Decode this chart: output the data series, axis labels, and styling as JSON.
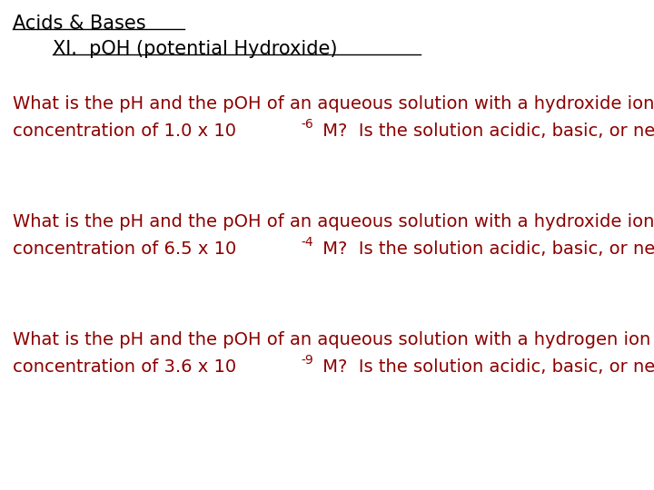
{
  "bg_color": "#ffffff",
  "title1": "Acids & Bases",
  "title2": "XI.  pOH (potential Hydroxide)",
  "title_color": "#000000",
  "question_color": "#8B0000",
  "q1_line1": "What is the pH and the pOH of an aqueous solution with a hydroxide ion",
  "q1_line2_pre": "concentration of 1.0 x 10",
  "q1_exp": "-6",
  "q1_line2_post": " M?  Is the solution acidic, basic, or neutral?",
  "q2_line1": "What is the pH and the pOH of an aqueous solution with a hydroxide ion",
  "q2_line2_pre": "concentration of 6.5 x 10",
  "q2_exp": "-4",
  "q2_line2_post": " M?  Is the solution acidic, basic, or neutral?",
  "q3_line1": "What is the pH and the pOH of an aqueous solution with a hydrogen ion",
  "q3_line2_pre": "concentration of 3.6 x 10",
  "q3_exp": "-9",
  "q3_line2_post": " M?  Is the solution acidic, basic, or neutral?",
  "font_family": "DejaVu Sans",
  "title1_fontsize": 15,
  "title2_fontsize": 15,
  "question_fontsize": 14
}
